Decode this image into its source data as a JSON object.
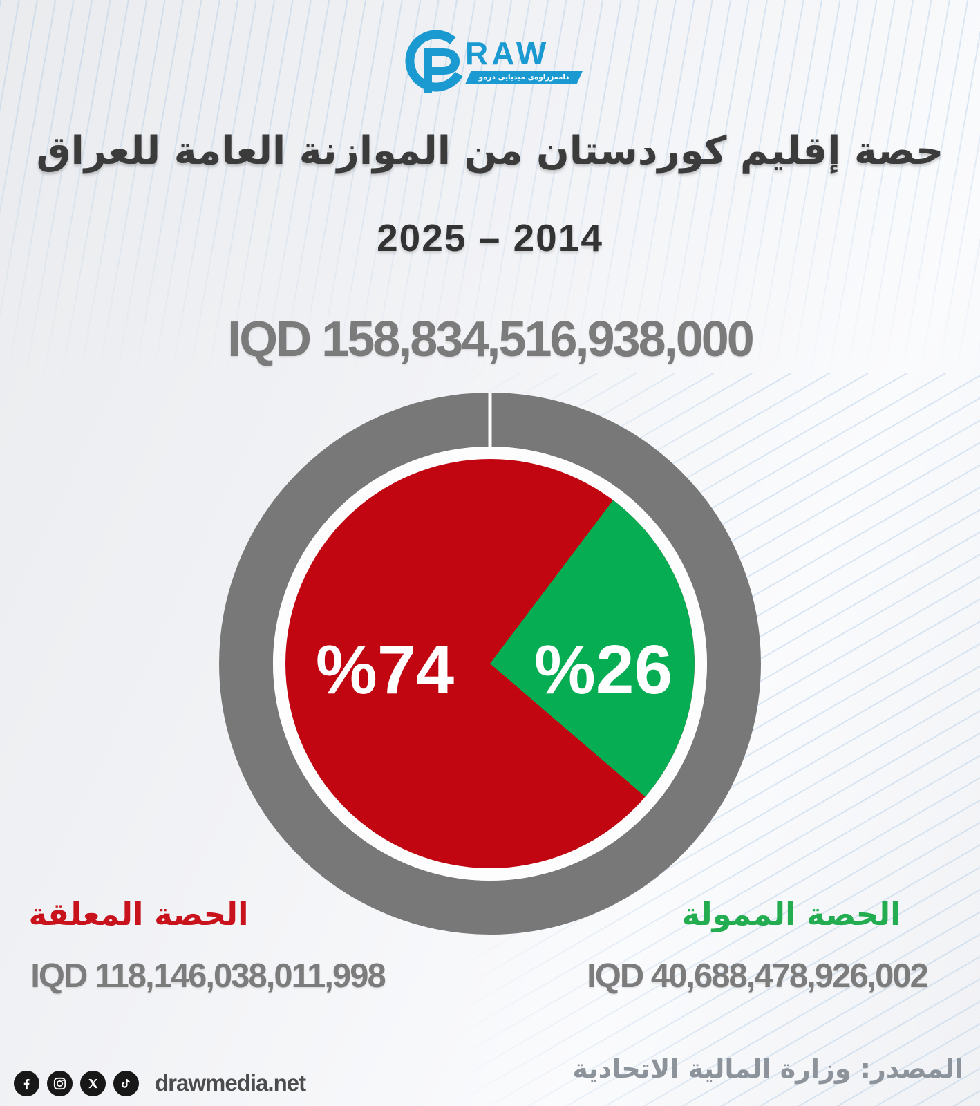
{
  "logo": {
    "word": "RAW",
    "tagline": "دامەزراوەی میدیایی درەو",
    "brand_color": "#1b9ad2"
  },
  "header": {
    "title": "حصة إقليم كوردستان من الموازنة العامة للعراق",
    "years": "2025 – 2014"
  },
  "total": {
    "display": "IQD 158,834,516,938,000"
  },
  "chart_data": {
    "type": "pie",
    "title": "حصة إقليم كوردستان من الموازنة العامة للعراق 2025 – 2014",
    "total_display": "IQD 158,834,516,938,000",
    "units": "IQD",
    "rotation_deg": 37,
    "ring_color": "#787878",
    "slices": [
      {
        "name": "الحصة المعلقة",
        "percent": 74,
        "label": "%74",
        "value_iqd": "118,146,038,011,998",
        "value_display": "IQD 118,146,038,011,998",
        "color": "#c10511",
        "label_color": "#c8131d"
      },
      {
        "name": "الحصة الممولة",
        "percent": 26,
        "label": "%26",
        "value_iqd": "40,688,478,926,002",
        "value_display": "IQD 40,688,478,926,002",
        "color": "#06ad52",
        "label_color": "#23ac50"
      }
    ]
  },
  "footer": {
    "website": "drawmedia.net",
    "source": "المصدر: وزارة المالية الاتحادية",
    "social": [
      "facebook-icon",
      "instagram-icon",
      "x-icon",
      "tiktok-icon"
    ]
  }
}
